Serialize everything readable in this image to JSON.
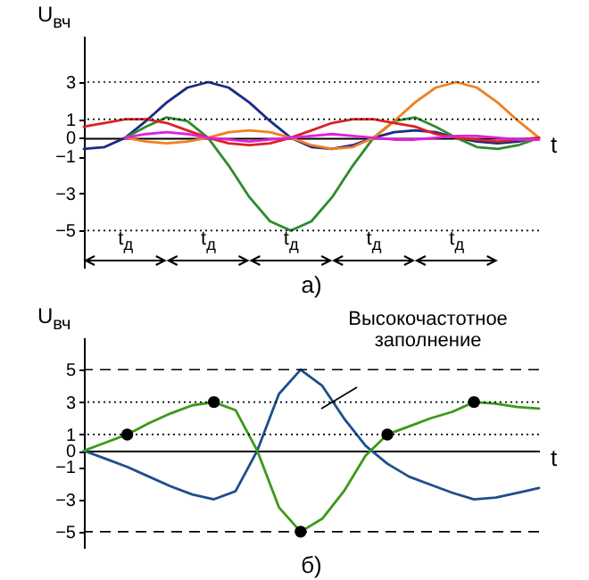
{
  "chart_data": [
    {
      "type": "line",
      "title": "а)",
      "ylabel": "U$_{вч}$",
      "xlabel": "t",
      "categories": [
        null,
        null,
        null,
        null,
        null,
        null,
        null,
        null,
        null,
        null,
        null,
        null,
        null,
        null,
        null,
        null,
        null,
        null,
        null,
        null,
        null,
        null,
        null
      ],
      "series": [
        {
          "color": "#1c2a86",
          "values": [
            -0.6,
            -0.5,
            0,
            0.9,
            1.9,
            2.7,
            3,
            2.7,
            1.9,
            0.9,
            0,
            -0.5,
            -0.6,
            -0.4,
            0,
            0.3,
            0.4,
            0.3,
            0,
            -0.2,
            -0.3,
            -0.2,
            0
          ]
        },
        {
          "color": "#2e8b2e",
          "values": [
            null,
            null,
            0,
            0.6,
            1.1,
            0.9,
            0,
            -1.5,
            -3.2,
            -4.5,
            -5,
            -4.5,
            -3.2,
            -1.5,
            0,
            0.9,
            1.1,
            0.6,
            0,
            -0.5,
            -0.6,
            -0.4,
            0
          ]
        },
        {
          "color": "#f08020",
          "values": [
            null,
            null,
            0,
            -0.2,
            -0.3,
            -0.2,
            0,
            0.3,
            0.4,
            0.3,
            0,
            -0.4,
            -0.6,
            -0.5,
            0,
            0.9,
            1.9,
            2.7,
            3,
            2.7,
            1.9,
            0.9,
            0
          ]
        },
        {
          "color": "#e02020",
          "values": [
            0.6,
            0.8,
            1,
            1,
            0.8,
            0.4,
            0,
            -0.3,
            -0.4,
            -0.3,
            0,
            0.4,
            0.8,
            1,
            1,
            0.8,
            0.6,
            0.2,
            0,
            -0.1,
            -0.2,
            -0.1,
            0
          ]
        },
        {
          "color": "#e020e0",
          "values": [
            null,
            null,
            0,
            0.2,
            0.3,
            0.2,
            0,
            -0.1,
            -0.2,
            -0.1,
            0,
            0.1,
            0.2,
            0.1,
            0,
            -0.1,
            -0.1,
            0,
            0.1,
            0.1,
            0,
            -0.1,
            -0.1
          ]
        }
      ],
      "ylim": [
        -7,
        5.5
      ],
      "yticks": [
        3,
        1,
        0,
        -1,
        -3,
        -5
      ],
      "ref_lines": [
        {
          "axis": "y",
          "value": 3,
          "line_style": "dotted",
          "color": "#000000"
        },
        {
          "axis": "y",
          "value": 1,
          "line_style": "dotted",
          "color": "#000000"
        },
        {
          "axis": "y",
          "value": -5,
          "line_style": "dotted",
          "color": "#000000"
        }
      ],
      "annotations": [
        "t$_{д}$",
        "t$_{д}$",
        "t$_{д}$",
        "t$_{д}$",
        "t$_{д}$"
      ],
      "tick_labels": "y",
      "line_style": "solid",
      "marker": "none"
    },
    {
      "type": "line",
      "title": "б)",
      "ylabel": "U$_{вч}$",
      "xlabel": "t",
      "categories": [
        null,
        null,
        null,
        null,
        null,
        null,
        null,
        null,
        null,
        null,
        null,
        null,
        null,
        null,
        null,
        null,
        null,
        null,
        null,
        null,
        null,
        null
      ],
      "series": [
        {
          "color": "#1f4e8c",
          "values": [
            0,
            -0.5,
            -1,
            -1.6,
            -2.2,
            -2.7,
            -3,
            -2.5,
            0,
            3.5,
            5,
            4,
            2,
            0.3,
            -0.8,
            -1.6,
            -2.1,
            -2.6,
            -3,
            -2.9,
            -2.6,
            -2.3
          ]
        },
        {
          "color": "#3a9a1a",
          "values": [
            0,
            0.5,
            1,
            1.7,
            2.3,
            2.8,
            3,
            2.5,
            0,
            -3.5,
            -5,
            -4.2,
            -2.5,
            -0.3,
            1,
            1.5,
            2,
            2.4,
            3,
            2.9,
            2.7,
            2.6
          ]
        },
        {
          "type": "scatter",
          "color": "#000000",
          "marker": "circle",
          "values": [
            null,
            null,
            1,
            null,
            null,
            null,
            3,
            null,
            null,
            null,
            -5,
            null,
            null,
            null,
            1,
            null,
            null,
            null,
            3,
            null,
            null,
            null
          ]
        }
      ],
      "ylim": [
        -6,
        7
      ],
      "yticks": [
        5,
        3,
        1,
        0,
        -1,
        -3,
        -5
      ],
      "ref_lines": [
        {
          "axis": "y",
          "value": 5,
          "line_style": "dashed",
          "color": "#000000"
        },
        {
          "axis": "y",
          "value": 3,
          "line_style": "dotted",
          "color": "#000000"
        },
        {
          "axis": "y",
          "value": 1,
          "line_style": "dotted",
          "color": "#000000"
        },
        {
          "axis": "y",
          "value": -5,
          "line_style": "dashed",
          "color": "#000000"
        }
      ],
      "annotations": [
        "Высокочастотное заполнение"
      ],
      "tick_labels": "y",
      "line_style": "solid"
    }
  ]
}
